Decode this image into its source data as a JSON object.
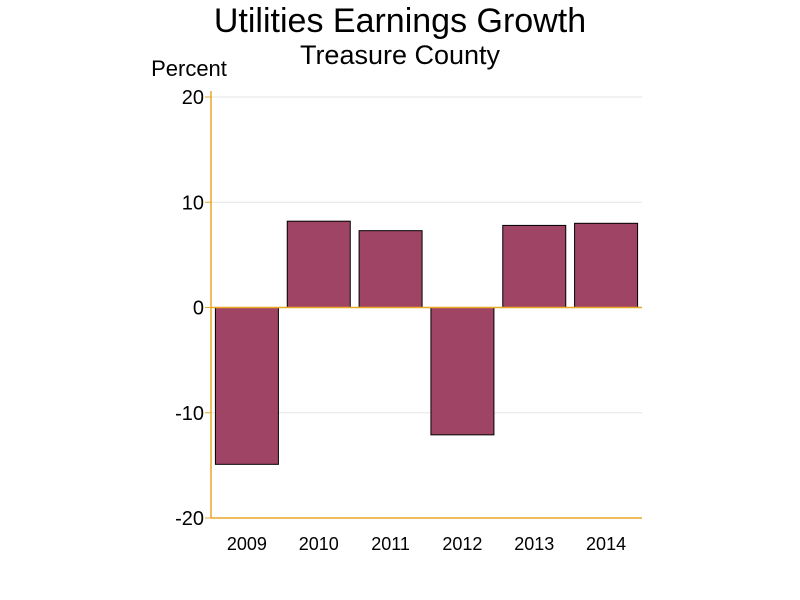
{
  "chart_data": {
    "type": "bar",
    "title": "Utilities Earnings Growth",
    "subtitle": "Treasure County",
    "ylabel": "Percent",
    "xlabel": "",
    "categories": [
      "2009",
      "2010",
      "2011",
      "2012",
      "2013",
      "2014"
    ],
    "values": [
      -14.9,
      8.2,
      7.3,
      -12.1,
      7.8,
      8.0
    ],
    "ylim": [
      -20,
      20
    ],
    "yticks": [
      20,
      10,
      0,
      -10,
      -20
    ],
    "grid": true,
    "legend": "none",
    "colors": {
      "bar": "#a04466",
      "bar_outline": "#000000",
      "axis": "#e8a828",
      "gridline": "#e6e6e6"
    }
  }
}
